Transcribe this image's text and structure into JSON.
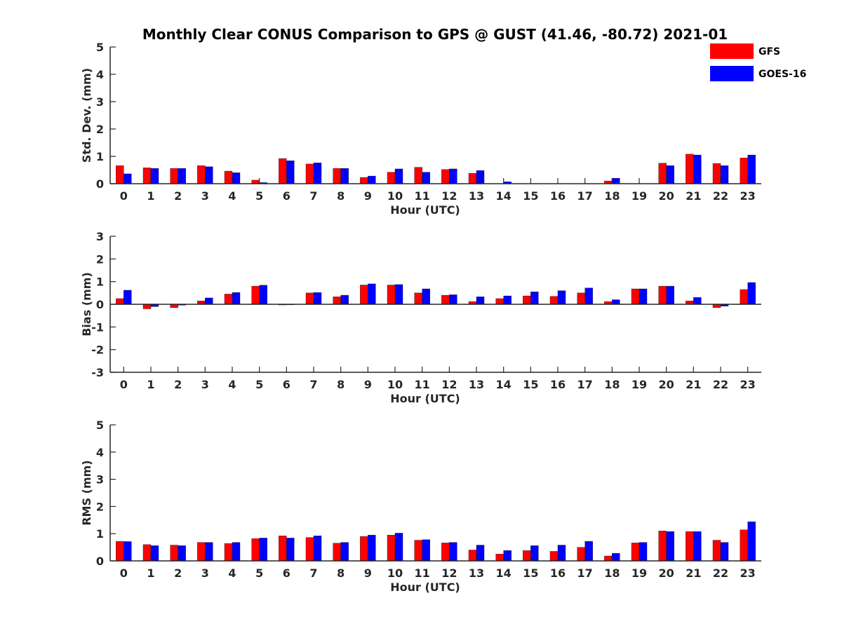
{
  "chart_data": {
    "type": "bar",
    "title": "Monthly Clear CONUS Comparison to GPS @ GUST (41.46, -80.72) 2021-01",
    "legend": {
      "placement": "top-right",
      "entries": [
        {
          "name": "GFS",
          "color": "#ff0000"
        },
        {
          "name": "GOES-16",
          "color": "#0000ff"
        }
      ]
    },
    "categories": [
      "0",
      "1",
      "2",
      "3",
      "4",
      "5",
      "6",
      "7",
      "8",
      "9",
      "10",
      "11",
      "12",
      "13",
      "14",
      "15",
      "16",
      "17",
      "18",
      "19",
      "20",
      "21",
      "22",
      "23"
    ],
    "panels": [
      {
        "ylabel": "Std. Dev. (mm)",
        "xlabel": "Hour (UTC)",
        "ylim": [
          0,
          5
        ],
        "yticks": [
          0,
          1,
          2,
          3,
          4,
          5
        ],
        "series": [
          {
            "name": "GFS",
            "color": "#ff0000",
            "values": [
              0.66,
              0.58,
              0.56,
              0.66,
              0.46,
              0.13,
              0.92,
              0.72,
              0.56,
              0.23,
              0.42,
              0.6,
              0.52,
              0.38,
              0.0,
              0.0,
              0.0,
              0.0,
              0.1,
              0.0,
              0.75,
              1.08,
              0.74,
              0.94
            ]
          },
          {
            "name": "GOES-16",
            "color": "#0000ff",
            "values": [
              0.36,
              0.56,
              0.56,
              0.62,
              0.4,
              0.04,
              0.84,
              0.76,
              0.56,
              0.28,
              0.54,
              0.42,
              0.54,
              0.48,
              0.07,
              0.0,
              0.0,
              0.0,
              0.2,
              0.0,
              0.66,
              1.05,
              0.66,
              1.05
            ]
          }
        ]
      },
      {
        "ylabel": "Bias (mm)",
        "xlabel": "Hour (UTC)",
        "ylim": [
          -3,
          3
        ],
        "yticks": [
          -3,
          -2,
          -1,
          0,
          1,
          2,
          3
        ],
        "series": [
          {
            "name": "GFS",
            "color": "#ff0000",
            "values": [
              0.25,
              -0.2,
              -0.15,
              0.15,
              0.45,
              0.8,
              -0.03,
              0.5,
              0.33,
              0.85,
              0.85,
              0.5,
              0.4,
              0.12,
              0.25,
              0.37,
              0.35,
              0.5,
              0.12,
              0.68,
              0.8,
              0.15,
              -0.15,
              0.65
            ]
          },
          {
            "name": "GOES-16",
            "color": "#0000ff",
            "values": [
              0.62,
              -0.1,
              -0.04,
              0.28,
              0.52,
              0.84,
              -0.02,
              0.52,
              0.4,
              0.9,
              0.87,
              0.68,
              0.42,
              0.33,
              0.37,
              0.55,
              0.6,
              0.72,
              0.2,
              0.68,
              0.8,
              0.3,
              -0.08,
              0.96
            ]
          }
        ]
      },
      {
        "ylabel": "RMS (mm)",
        "xlabel": "Hour (UTC)",
        "ylim": [
          0,
          5
        ],
        "yticks": [
          0,
          1,
          2,
          3,
          4,
          5
        ],
        "series": [
          {
            "name": "GFS",
            "color": "#ff0000",
            "values": [
              0.72,
              0.6,
              0.58,
              0.68,
              0.64,
              0.82,
              0.92,
              0.86,
              0.65,
              0.9,
              0.95,
              0.76,
              0.66,
              0.4,
              0.25,
              0.38,
              0.35,
              0.5,
              0.18,
              0.66,
              1.1,
              1.08,
              0.76,
              1.14
            ]
          },
          {
            "name": "GOES-16",
            "color": "#0000ff",
            "values": [
              0.71,
              0.56,
              0.56,
              0.68,
              0.68,
              0.84,
              0.84,
              0.92,
              0.68,
              0.95,
              1.02,
              0.78,
              0.68,
              0.58,
              0.38,
              0.56,
              0.58,
              0.72,
              0.28,
              0.68,
              1.08,
              1.08,
              0.68,
              1.44
            ]
          }
        ]
      }
    ]
  }
}
